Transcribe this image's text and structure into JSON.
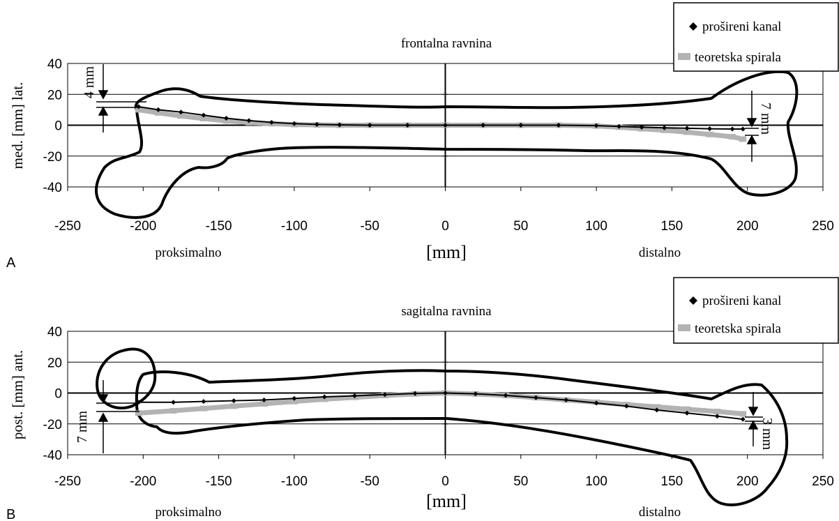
{
  "chart_data": [
    {
      "type": "line",
      "panel_label": "A",
      "title": "frontalna ravnina",
      "xlabel": "[mm]",
      "ylabel": "med. [mm] lat.",
      "xlim": [
        -250,
        250
      ],
      "ylim": [
        -40,
        40
      ],
      "xticks": [
        "-250",
        "-200",
        "-150",
        "-100",
        "-50",
        "0",
        "50",
        "100",
        "150",
        "200",
        "250"
      ],
      "yticks": [
        "40",
        "20",
        "0",
        "-20",
        "-40"
      ],
      "grid": "horizontal",
      "legend": "top-right",
      "left_region_label": "proksimalno",
      "right_region_label": "distalno",
      "annotations": [
        "4 mm",
        "7 mm"
      ],
      "series": [
        {
          "name": "prošireni kanal",
          "marker": "diamond",
          "color": "#000000",
          "x": [
            -203,
            -190,
            -175,
            -160,
            -145,
            -130,
            -115,
            -100,
            -85,
            -70,
            -50,
            -25,
            0,
            25,
            50,
            75,
            100,
            115,
            130,
            145,
            160,
            175,
            190,
            197
          ],
          "y": [
            12,
            10,
            8.5,
            6.5,
            4.5,
            3,
            1.8,
            1,
            0.5,
            0.2,
            0,
            0,
            0,
            0,
            0,
            0,
            -0.3,
            -0.8,
            -1.3,
            -1.7,
            -2,
            -2.3,
            -2.5,
            -2.5
          ]
        },
        {
          "name": "teoretska spirala",
          "marker": "square",
          "color": "#b3b3b3",
          "x": [
            -203,
            -190,
            -175,
            -160,
            -145,
            -130,
            -115,
            -100,
            -85,
            -70,
            -50,
            -25,
            0,
            25,
            50,
            75,
            100,
            115,
            130,
            145,
            160,
            175,
            190,
            197
          ],
          "y": [
            10,
            8,
            6,
            4.3,
            2.8,
            1.7,
            1,
            0.4,
            0.2,
            0,
            0,
            0,
            0,
            0,
            0,
            0,
            -0.5,
            -1.3,
            -2.3,
            -3.3,
            -4.5,
            -6,
            -7.5,
            -9
          ]
        }
      ]
    },
    {
      "type": "line",
      "panel_label": "B",
      "title": "sagitalna ravnina",
      "xlabel": "[mm]",
      "ylabel": "post. [mm] ant.",
      "xlim": [
        -250,
        250
      ],
      "ylim": [
        -40,
        40
      ],
      "xticks": [
        "-250",
        "-200",
        "-150",
        "-100",
        "-50",
        "0",
        "50",
        "100",
        "150",
        "200",
        "250"
      ],
      "yticks": [
        "40",
        "20",
        "0",
        "-20",
        "-40"
      ],
      "grid": "horizontal",
      "legend": "top-right",
      "left_region_label": "proksimalno",
      "right_region_label": "distalno",
      "annotations": [
        "7 mm",
        "3 mm"
      ],
      "series": [
        {
          "name": "prošireni kanal",
          "marker": "diamond",
          "color": "#000000",
          "x": [
            -203,
            -180,
            -160,
            -140,
            -120,
            -100,
            -80,
            -60,
            -40,
            -20,
            0,
            20,
            40,
            60,
            80,
            100,
            120,
            140,
            160,
            180,
            197
          ],
          "y": [
            -6,
            -6,
            -5.5,
            -5,
            -4.5,
            -3.5,
            -2.5,
            -1.8,
            -1,
            -0.3,
            0,
            -0.5,
            -1.5,
            -3,
            -4.5,
            -6.5,
            -8.5,
            -11,
            -13,
            -15,
            -17
          ]
        },
        {
          "name": "teoretska spirala",
          "marker": "square",
          "color": "#b3b3b3",
          "x": [
            -203,
            -180,
            -160,
            -140,
            -120,
            -100,
            -80,
            -60,
            -40,
            -20,
            0,
            20,
            40,
            60,
            80,
            100,
            120,
            140,
            160,
            180,
            197
          ],
          "y": [
            -13,
            -11.5,
            -10,
            -8.5,
            -7,
            -5.5,
            -4,
            -2.8,
            -1.6,
            -0.6,
            0,
            -0.6,
            -1.6,
            -3,
            -4.5,
            -6,
            -7.5,
            -9,
            -10.5,
            -12,
            -13.5
          ]
        }
      ]
    }
  ]
}
